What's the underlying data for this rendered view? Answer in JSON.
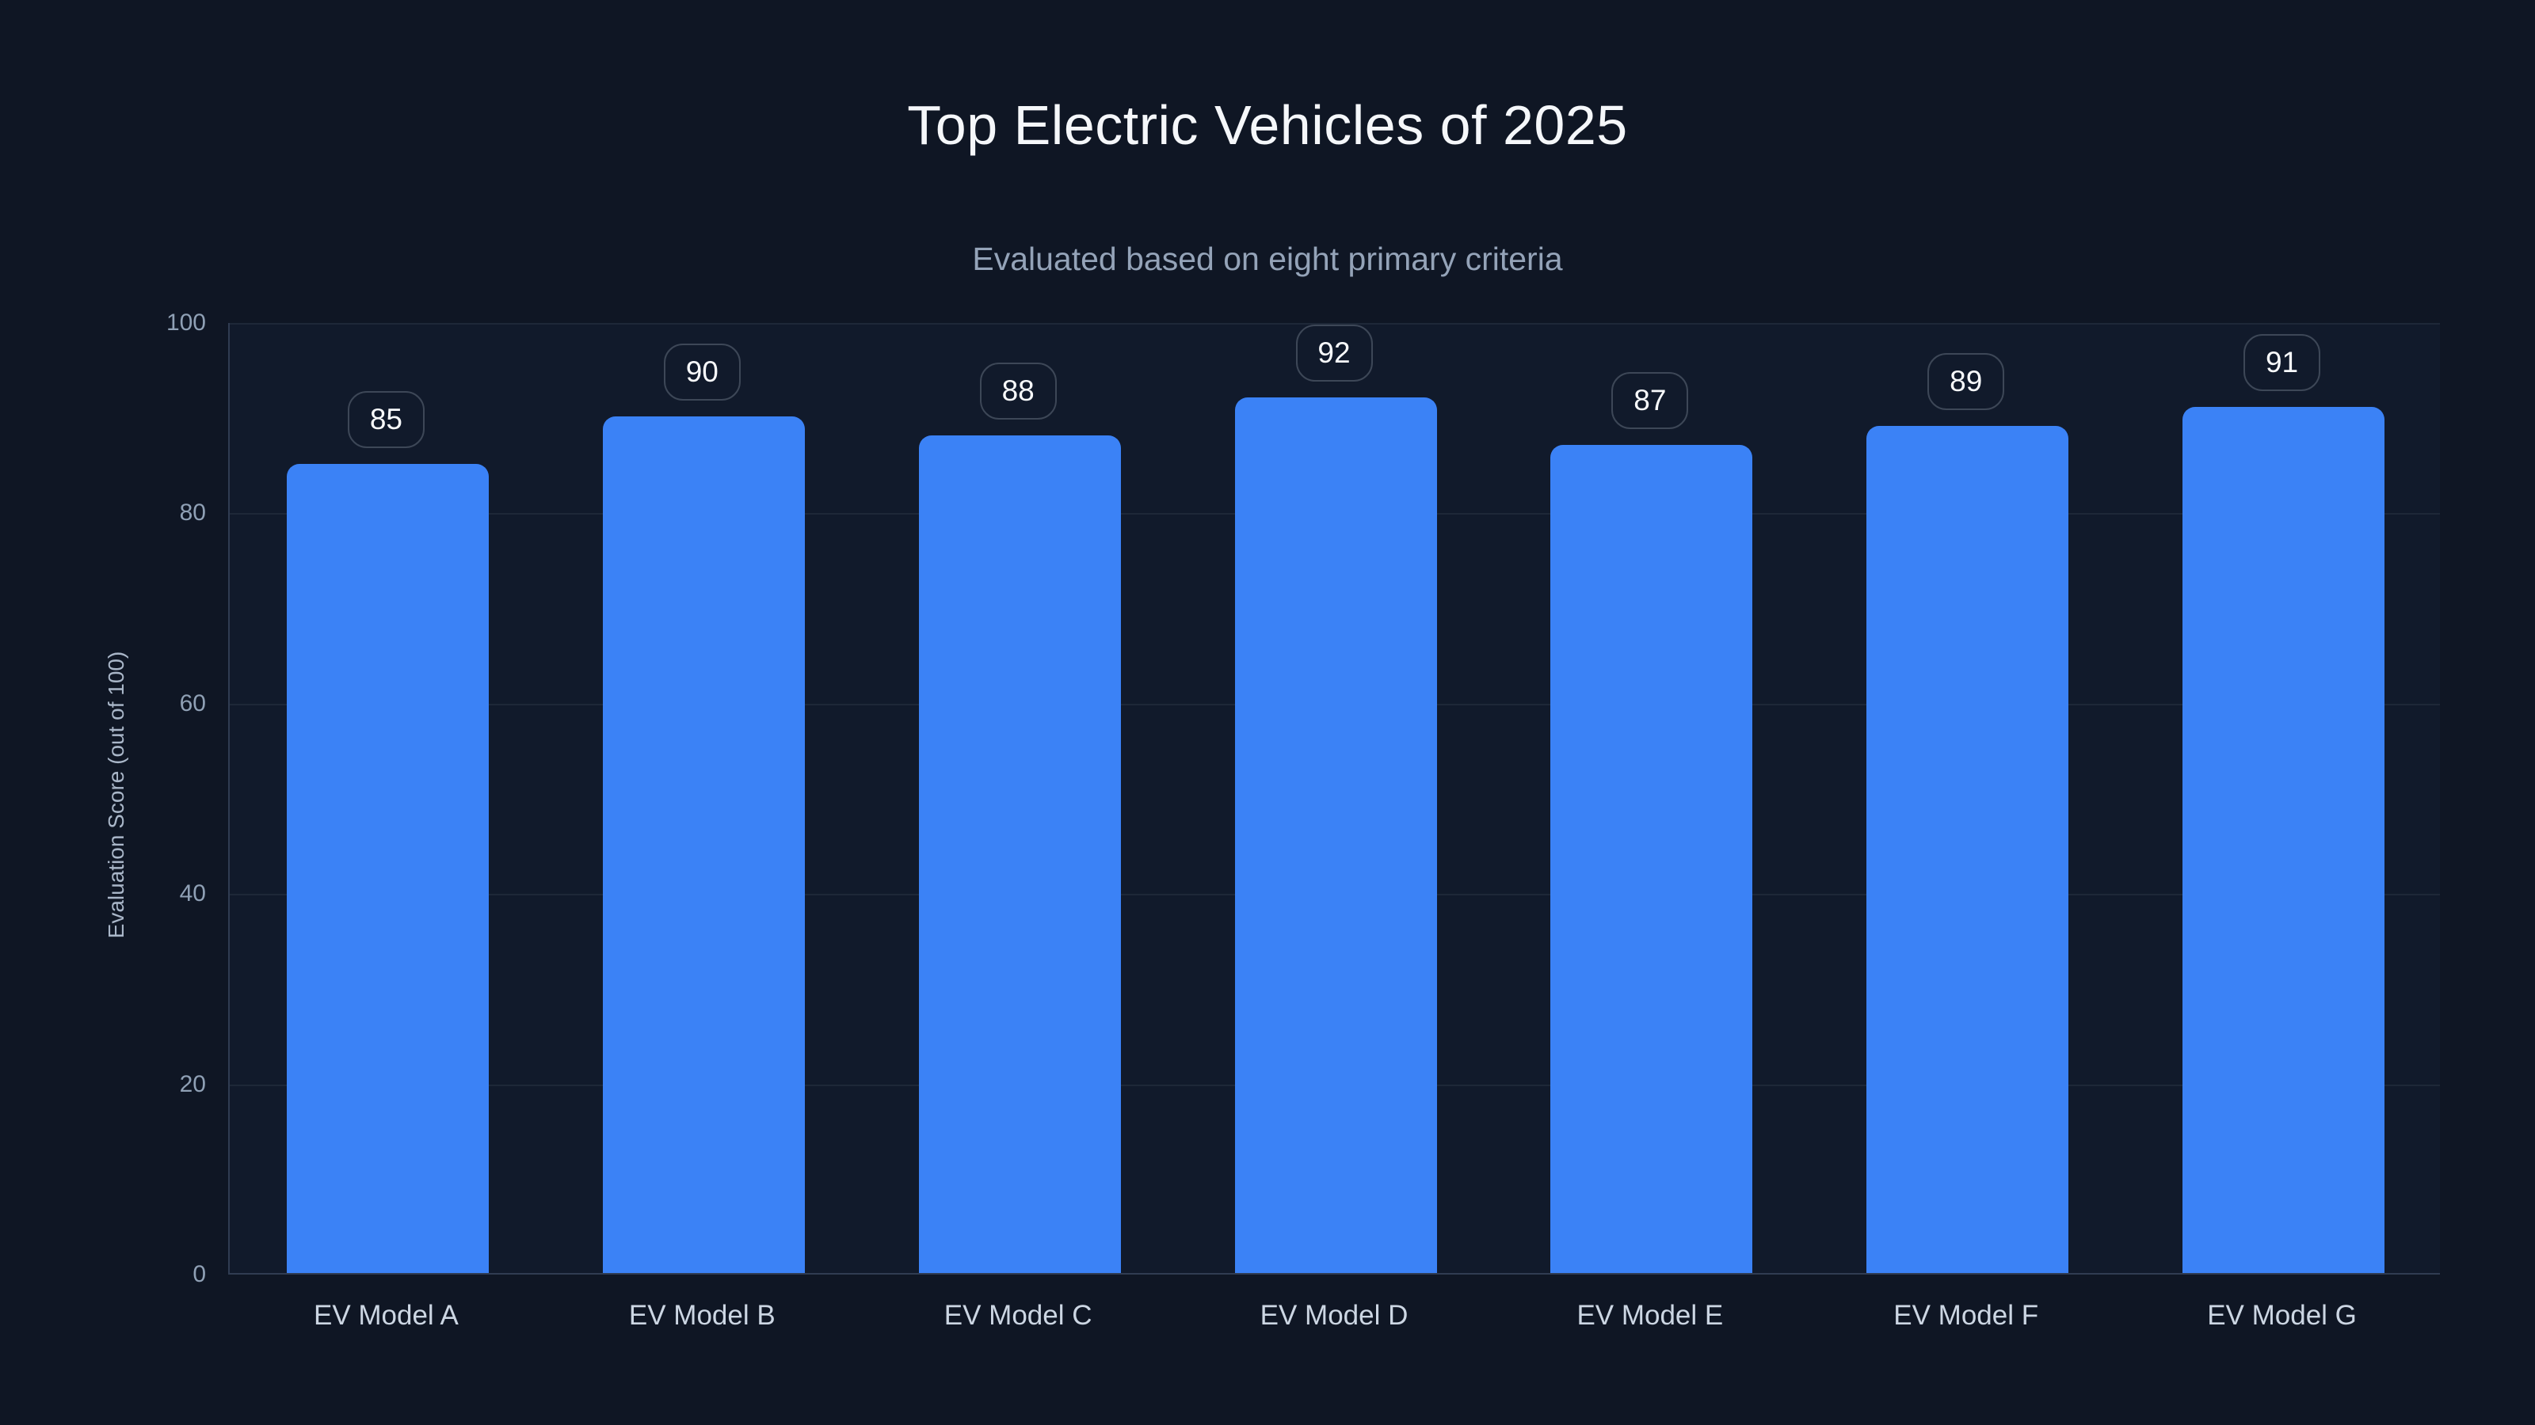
{
  "header": {
    "title": "Top Electric Vehicles of 2025",
    "subtitle": "Evaluated based on eight primary criteria"
  },
  "chart_data": {
    "type": "bar",
    "title": "Top Electric Vehicles of 2025",
    "subtitle": "Evaluated based on eight primary criteria",
    "categories": [
      "EV Model A",
      "EV Model B",
      "EV Model C",
      "EV Model D",
      "EV Model E",
      "EV Model F",
      "EV Model G"
    ],
    "values": [
      85,
      90,
      88,
      92,
      87,
      89,
      91
    ],
    "data_labels": [
      "85",
      "90",
      "88",
      "92",
      "87",
      "89",
      "91"
    ],
    "xlabel": "",
    "ylabel": "Evaluation Score (out of 100)",
    "ylim": [
      0,
      100
    ],
    "yticks": [
      0,
      20,
      40,
      60,
      80,
      100
    ],
    "grid": true,
    "legend": "none"
  },
  "colors": {
    "background": "#0f1624",
    "plot_background": "#111a2b",
    "bar": "#3b82f6",
    "gridline": "#1e2838",
    "axis_line": "#303c52",
    "title_text": "#f5f7fa",
    "subtitle_text": "#94a3b8",
    "y_tick_text": "#8fa0b5",
    "x_label_text": "#ccd6e3",
    "value_text": "#f8fafc",
    "value_box_border": "#3d4757"
  }
}
